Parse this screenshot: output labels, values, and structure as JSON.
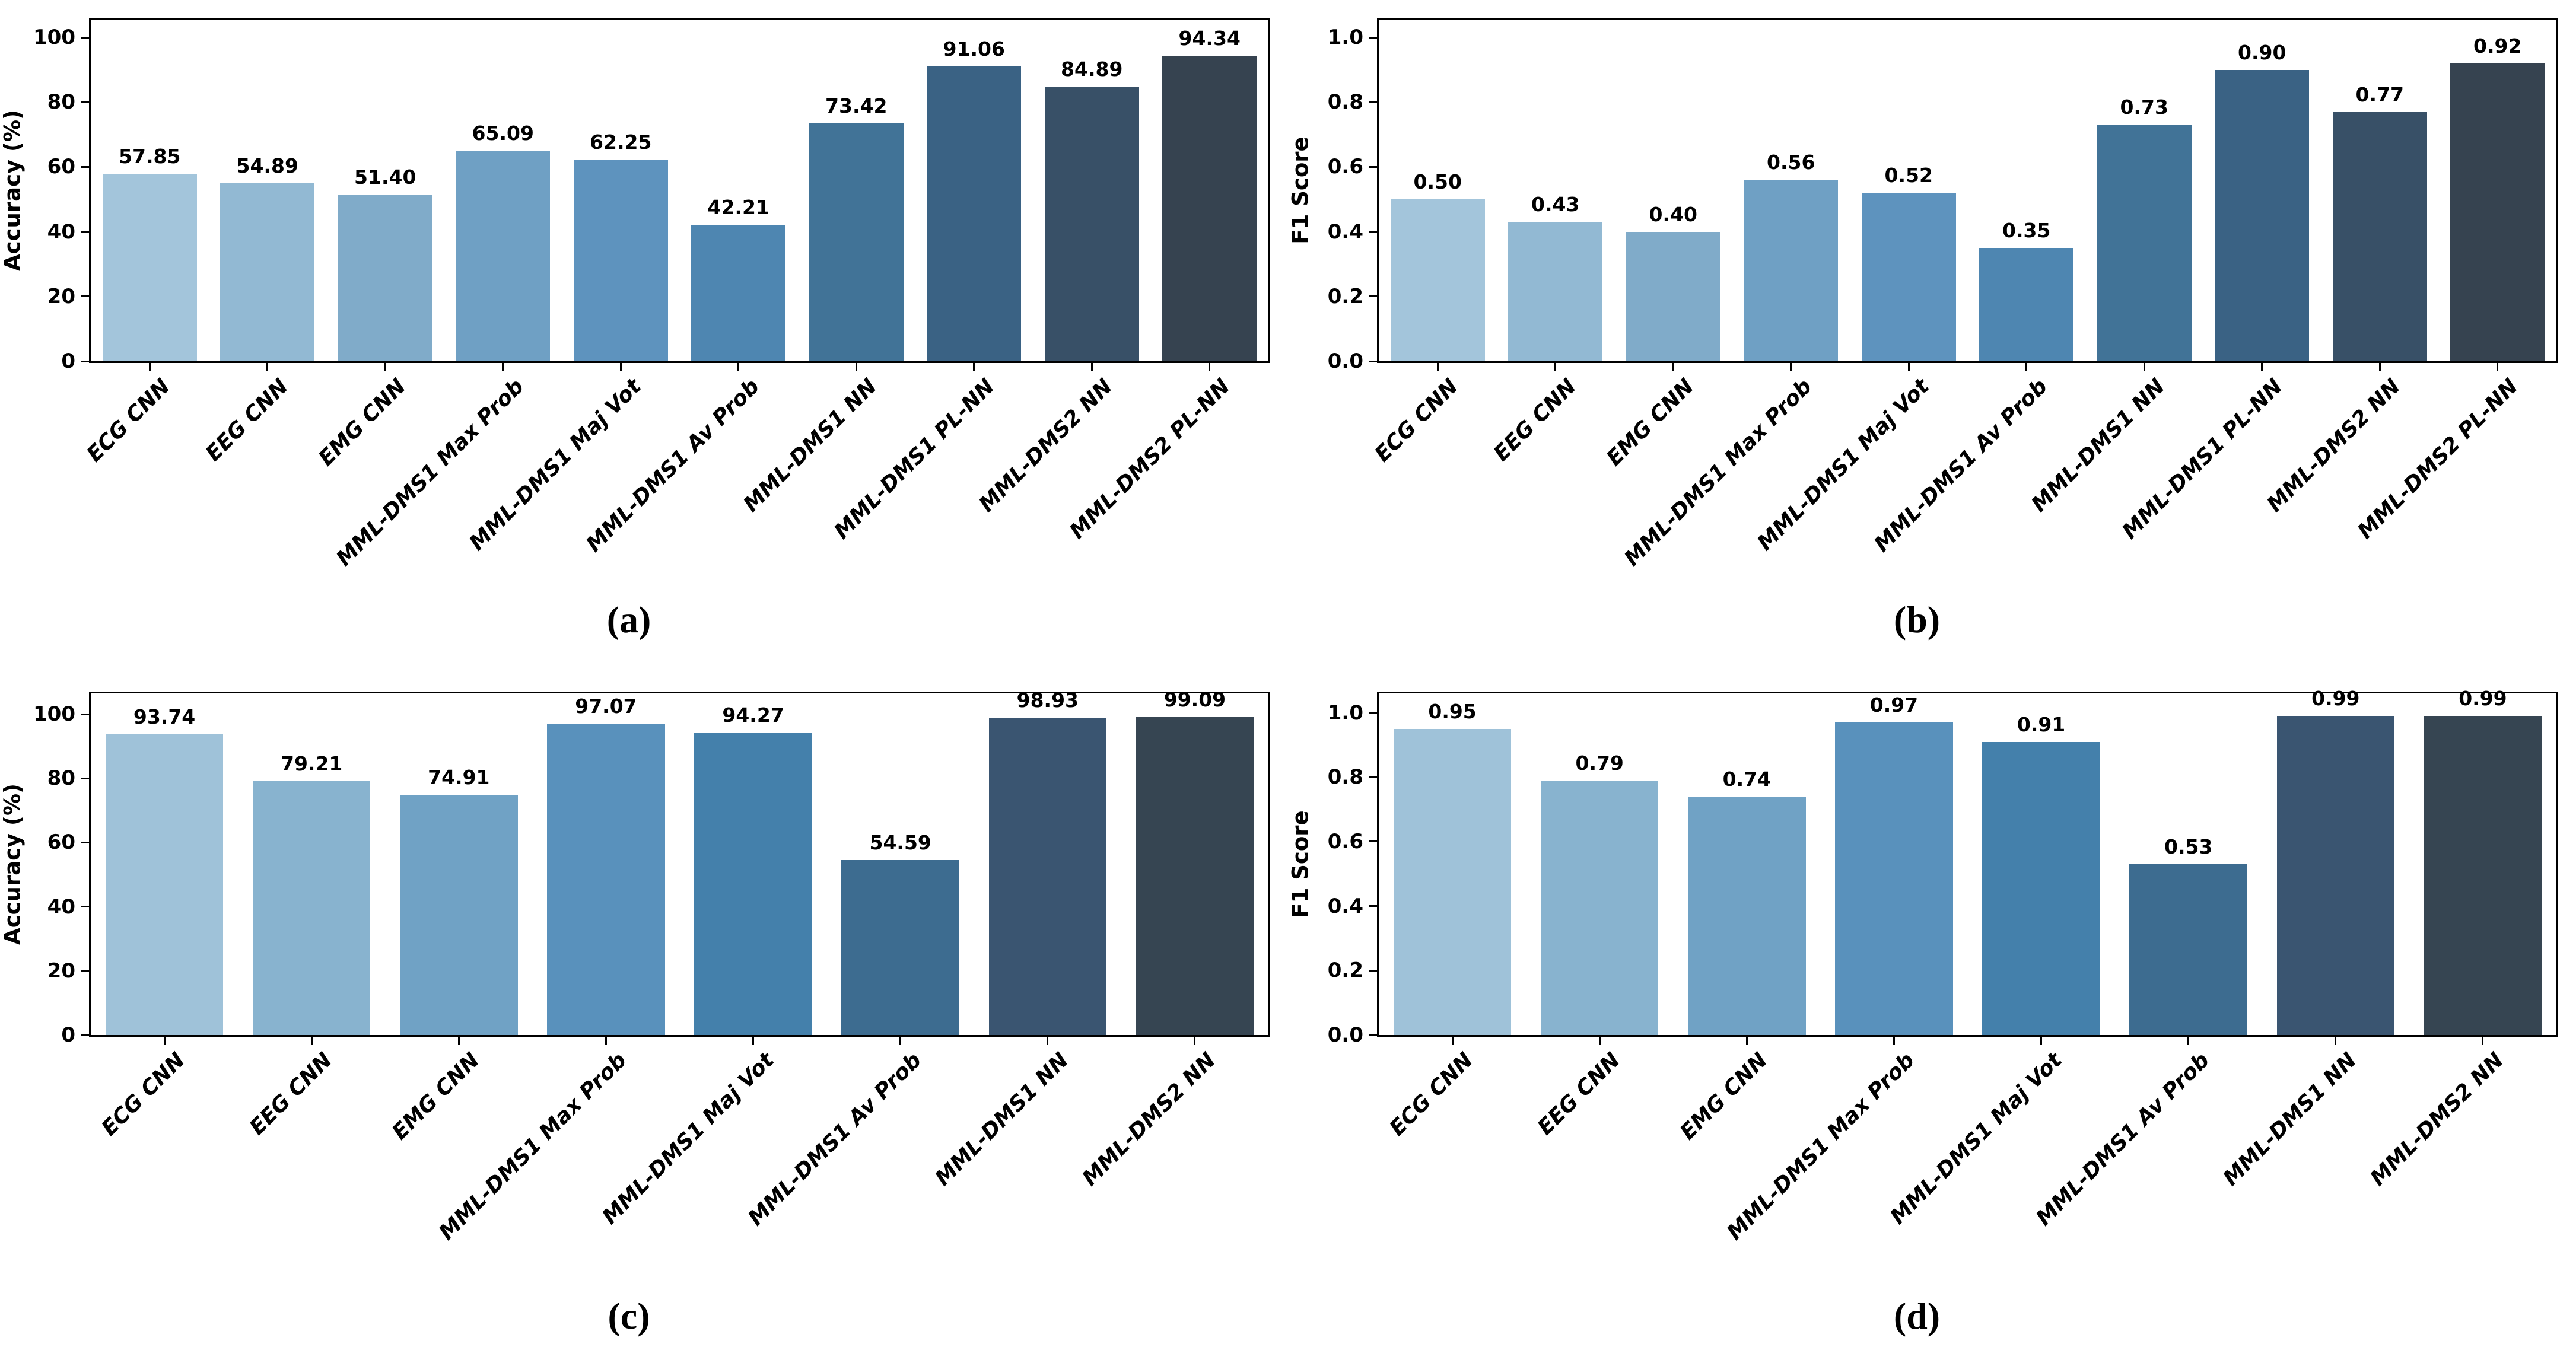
{
  "figure": {
    "description": "Four bar chart panels comparing Accuracy and F1 Score of CNN and multimodal fusion models"
  },
  "palettes": {
    "blues10": [
      "#a3c5db",
      "#92b9d3",
      "#80abc9",
      "#6fa0c4",
      "#5e93be",
      "#4e86b1",
      "#417397",
      "#3a6284",
      "#385067",
      "#364350"
    ],
    "blues8": [
      "#9fc2d9",
      "#88b3cf",
      "#70a2c5",
      "#5991bc",
      "#4480ab",
      "#3d6c90",
      "#3a5571",
      "#364552"
    ]
  },
  "chart_data": [
    {
      "id": "a",
      "type": "bar",
      "caption": "(a)",
      "ylabel": "Accuracy (%)",
      "ylim": [
        0,
        105.5
      ],
      "yticks": [
        0,
        20,
        40,
        60,
        80,
        100
      ],
      "ytick_labels": [
        "0",
        "20",
        "40",
        "60",
        "80",
        "100"
      ],
      "grid": false,
      "legend": "none",
      "palette": "blues10",
      "categories": [
        "ECG CNN",
        "EEG CNN",
        "EMG CNN",
        "MML-DMS1 Max Prob",
        "MML-DMS1 Maj Vot",
        "MML-DMS1 Av Prob",
        "MML-DMS1 NN",
        "MML-DMS1 PL-NN",
        "MML-DMS2 NN",
        "MML-DMS2 PL-NN"
      ],
      "values": [
        57.85,
        54.89,
        51.4,
        65.09,
        62.25,
        42.21,
        73.42,
        91.06,
        84.89,
        94.34
      ],
      "bar_labels": [
        "57.85",
        "54.89",
        "51.40",
        "65.09",
        "62.25",
        "42.21",
        "73.42",
        "91.06",
        "84.89",
        "94.34"
      ]
    },
    {
      "id": "b",
      "type": "bar",
      "caption": "(b)",
      "ylabel": "F1 Score",
      "ylim": [
        0,
        1.055
      ],
      "yticks": [
        0.0,
        0.2,
        0.4,
        0.6,
        0.8,
        1.0
      ],
      "ytick_labels": [
        "0.0",
        "0.2",
        "0.4",
        "0.6",
        "0.8",
        "1.0"
      ],
      "grid": false,
      "legend": "none",
      "palette": "blues10",
      "categories": [
        "ECG CNN",
        "EEG CNN",
        "EMG CNN",
        "MML-DMS1 Max Prob",
        "MML-DMS1 Maj Vot",
        "MML-DMS1 Av Prob",
        "MML-DMS1 NN",
        "MML-DMS1 PL-NN",
        "MML-DMS2 NN",
        "MML-DMS2 PL-NN"
      ],
      "values": [
        0.5,
        0.43,
        0.4,
        0.56,
        0.52,
        0.35,
        0.73,
        0.9,
        0.77,
        0.92
      ],
      "bar_labels": [
        "0.50",
        "0.43",
        "0.40",
        "0.56",
        "0.52",
        "0.35",
        "0.73",
        "0.90",
        "0.77",
        "0.92"
      ]
    },
    {
      "id": "c",
      "type": "bar",
      "caption": "(c)",
      "ylabel": "Accuracy (%)",
      "ylim": [
        0,
        106.5
      ],
      "yticks": [
        0,
        20,
        40,
        60,
        80,
        100
      ],
      "ytick_labels": [
        "0",
        "20",
        "40",
        "60",
        "80",
        "100"
      ],
      "grid": false,
      "legend": "none",
      "palette": "blues8",
      "categories": [
        "ECG CNN",
        "EEG CNN",
        "EMG CNN",
        "MML-DMS1 Max Prob",
        "MML-DMS1 Maj Vot",
        "MML-DMS1 Av Prob",
        "MML-DMS1 NN",
        "MML-DMS2 NN"
      ],
      "values": [
        93.74,
        79.21,
        74.91,
        97.07,
        94.27,
        54.59,
        98.93,
        99.09
      ],
      "bar_labels": [
        "93.74",
        "79.21",
        "74.91",
        "97.07",
        "94.27",
        "54.59",
        "98.93",
        "99.09"
      ]
    },
    {
      "id": "d",
      "type": "bar",
      "caption": "(d)",
      "ylabel": "F1 Score",
      "ylim": [
        0,
        1.06
      ],
      "yticks": [
        0.0,
        0.2,
        0.4,
        0.6,
        0.8,
        1.0
      ],
      "ytick_labels": [
        "0.0",
        "0.2",
        "0.4",
        "0.6",
        "0.8",
        "1.0"
      ],
      "grid": false,
      "legend": "none",
      "palette": "blues8",
      "categories": [
        "ECG CNN",
        "EEG CNN",
        "EMG CNN",
        "MML-DMS1 Max Prob",
        "MML-DMS1 Maj Vot",
        "MML-DMS1 Av Prob",
        "MML-DMS1 NN",
        "MML-DMS2 NN"
      ],
      "values": [
        0.95,
        0.79,
        0.74,
        0.97,
        0.91,
        0.53,
        0.99,
        0.99
      ],
      "bar_labels": [
        "0.95",
        "0.79",
        "0.74",
        "0.97",
        "0.91",
        "0.53",
        "0.99",
        "0.99"
      ]
    }
  ]
}
